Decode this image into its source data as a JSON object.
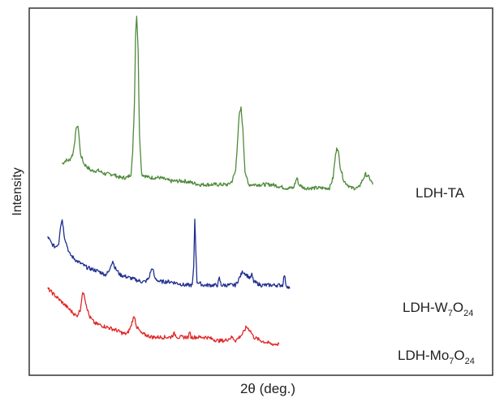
{
  "chart_data": {
    "type": "line",
    "xlabel": "2θ (deg.)",
    "ylabel": "Intensity",
    "xlim": [
      0,
      100
    ],
    "ylim": [
      0,
      100
    ],
    "grid": false,
    "legend": "none",
    "x_ticks": false,
    "y_ticks": false,
    "series": [
      {
        "name": "LDH-TA",
        "color": "#4e8a3a",
        "label_text": "LDH-TA",
        "label_sub": [],
        "points": [
          [
            6,
            57
          ],
          [
            7,
            58
          ],
          [
            8,
            58
          ],
          [
            9,
            60
          ],
          [
            9.5,
            64
          ],
          [
            10,
            68
          ],
          [
            10.5,
            67
          ],
          [
            11,
            60
          ],
          [
            12,
            57
          ],
          [
            14,
            55
          ],
          [
            16,
            55
          ],
          [
            18,
            54
          ],
          [
            20,
            54
          ],
          [
            22,
            53
          ],
          [
            24,
            53
          ],
          [
            25,
            54
          ],
          [
            25.5,
            60
          ],
          [
            26,
            75
          ],
          [
            26.3,
            94
          ],
          [
            26.6,
            100
          ],
          [
            27,
            90
          ],
          [
            27.4,
            65
          ],
          [
            28,
            54
          ],
          [
            30,
            53
          ],
          [
            33,
            53
          ],
          [
            36,
            52
          ],
          [
            40,
            52
          ],
          [
            44,
            51
          ],
          [
            48,
            51
          ],
          [
            52,
            51
          ],
          [
            53,
            52
          ],
          [
            54,
            55
          ],
          [
            54.5,
            63
          ],
          [
            55,
            71
          ],
          [
            55.5,
            73
          ],
          [
            56,
            67
          ],
          [
            56.6,
            55
          ],
          [
            57.5,
            51
          ],
          [
            60,
            51
          ],
          [
            64,
            51
          ],
          [
            68,
            50
          ],
          [
            70,
            50
          ],
          [
            71,
            53
          ],
          [
            71.5,
            51
          ],
          [
            73,
            50
          ],
          [
            76,
            50
          ],
          [
            80,
            50
          ],
          [
            81,
            53
          ],
          [
            81.5,
            58
          ],
          [
            82,
            62
          ],
          [
            82.5,
            60
          ],
          [
            83,
            56
          ],
          [
            84,
            52
          ],
          [
            86,
            50
          ],
          [
            88,
            50
          ],
          [
            89,
            52
          ],
          [
            90,
            54
          ],
          [
            91,
            53
          ],
          [
            92,
            51
          ]
        ]
      },
      {
        "name": "LDH-W7O24",
        "color": "#1f2f8f",
        "label_text": "LDH-W",
        "label_sub": [
          "7",
          "O",
          "24"
        ],
        "points": [
          [
            2,
            36
          ],
          [
            3,
            34
          ],
          [
            4,
            33
          ],
          [
            5,
            34
          ],
          [
            5.5,
            39
          ],
          [
            6,
            41
          ],
          [
            6.6,
            36
          ],
          [
            8,
            31
          ],
          [
            10,
            29
          ],
          [
            13,
            27
          ],
          [
            16,
            26
          ],
          [
            18,
            25
          ],
          [
            19,
            26
          ],
          [
            19.5,
            28
          ],
          [
            20,
            29
          ],
          [
            20.6,
            27
          ],
          [
            22,
            25
          ],
          [
            25,
            24
          ],
          [
            28,
            23
          ],
          [
            29,
            23
          ],
          [
            30,
            24
          ],
          [
            30.5,
            26
          ],
          [
            31,
            27
          ],
          [
            31.6,
            24
          ],
          [
            33,
            23
          ],
          [
            36,
            23
          ],
          [
            40,
            22
          ],
          [
            42,
            22
          ],
          [
            42.4,
            27
          ],
          [
            42.7,
            41
          ],
          [
            43,
            32
          ],
          [
            43.3,
            23
          ],
          [
            45,
            22
          ],
          [
            48,
            22
          ],
          [
            49,
            22
          ],
          [
            49.5,
            24
          ],
          [
            50,
            22
          ],
          [
            52,
            22
          ],
          [
            54,
            22
          ],
          [
            55,
            24
          ],
          [
            56,
            26
          ],
          [
            57,
            25
          ],
          [
            58,
            24
          ],
          [
            58.5,
            25
          ],
          [
            59,
            23
          ],
          [
            61,
            22
          ],
          [
            64,
            22
          ],
          [
            67,
            22
          ],
          [
            67.5,
            25
          ],
          [
            68,
            22
          ],
          [
            69,
            21
          ]
        ]
      },
      {
        "name": "LDH-Mo7O24",
        "color": "#e02828",
        "label_text": "LDH-Mo",
        "label_sub": [
          "7",
          "O",
          "24"
        ],
        "points": [
          [
            2,
            21
          ],
          [
            3,
            20
          ],
          [
            5,
            18
          ],
          [
            7,
            16
          ],
          [
            9,
            14
          ],
          [
            10,
            13
          ],
          [
            11,
            15
          ],
          [
            11.5,
            19
          ],
          [
            12,
            20
          ],
          [
            12.5,
            17
          ],
          [
            13.5,
            13
          ],
          [
            15,
            11
          ],
          [
            18,
            10
          ],
          [
            21,
            9
          ],
          [
            23,
            8
          ],
          [
            24,
            8
          ],
          [
            25,
            10
          ],
          [
            25.5,
            12
          ],
          [
            26,
            13
          ],
          [
            26.6,
            10
          ],
          [
            28,
            8
          ],
          [
            31,
            7
          ],
          [
            34,
            7
          ],
          [
            36,
            7
          ],
          [
            37,
            8
          ],
          [
            38,
            7
          ],
          [
            40,
            7
          ],
          [
            41,
            7
          ],
          [
            41.3,
            9
          ],
          [
            41.6,
            7
          ],
          [
            43,
            7
          ],
          [
            46,
            7
          ],
          [
            49,
            6
          ],
          [
            51,
            6
          ],
          [
            53,
            7
          ],
          [
            54,
            6
          ],
          [
            55,
            7
          ],
          [
            56,
            8
          ],
          [
            57,
            10
          ],
          [
            58,
            9
          ],
          [
            59,
            7
          ],
          [
            61,
            6
          ],
          [
            64,
            5
          ],
          [
            66,
            5
          ]
        ]
      }
    ]
  }
}
